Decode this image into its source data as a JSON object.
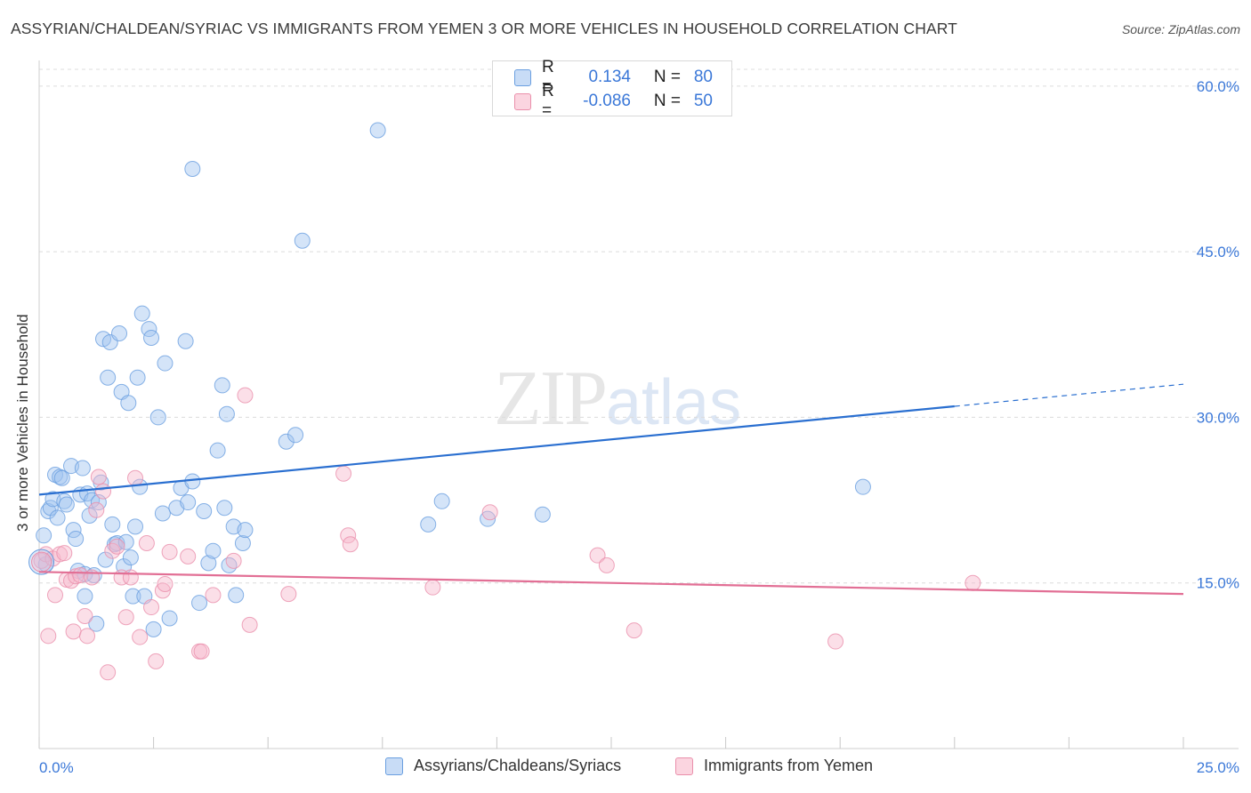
{
  "header": {
    "title": "ASSYRIAN/CHALDEAN/SYRIAC VS IMMIGRANTS FROM YEMEN 3 OR MORE VEHICLES IN HOUSEHOLD CORRELATION CHART",
    "source": "Source: ZipAtlas.com"
  },
  "watermark": {
    "zip": "ZIP",
    "atlas": "atlas"
  },
  "legend_top": {
    "rows": [
      {
        "r_label": "R =",
        "r_value": "0.134",
        "n_label": "N =",
        "n_value": "80",
        "color": "#9fc3f0"
      },
      {
        "r_label": "R =",
        "r_value": "-0.086",
        "n_label": "N =",
        "n_value": "50",
        "color": "#f7b8cc"
      }
    ]
  },
  "legend_bottom": {
    "items": [
      {
        "label": "Assyrians/Chaldeans/Syriacs",
        "color": "#9fc3f0"
      },
      {
        "label": "Immigrants from Yemen",
        "color": "#f7b8cc"
      }
    ]
  },
  "chart_data": {
    "type": "scatter",
    "title": "ASSYRIAN/CHALDEAN/SYRIAC VS IMMIGRANTS FROM YEMEN 3 OR MORE VEHICLES IN HOUSEHOLD CORRELATION CHART",
    "xlabel": "",
    "ylabel": "3 or more Vehicles in Household",
    "xlim": [
      0,
      25
    ],
    "ylim": [
      0,
      62
    ],
    "x_tick_labels": [
      "0.0%",
      "25.0%"
    ],
    "y_ticks": [
      15,
      30,
      45,
      60
    ],
    "y_tick_labels": [
      "15.0%",
      "30.0%",
      "45.0%",
      "60.0%"
    ],
    "grid": true,
    "legend_position": "top-center",
    "series": [
      {
        "name": "Assyrians/Chaldeans/Syriacs",
        "color": "#9fc3f0",
        "stroke": "#6a9fe0",
        "trend": {
          "x": [
            0,
            20
          ],
          "y": [
            23.0,
            31.0
          ],
          "dashed_extension_to_x": 25,
          "dashed_end_y": 33.0,
          "color": "#2a6fd0"
        },
        "points": [
          [
            0.1,
            19.3
          ],
          [
            0.2,
            21.5
          ],
          [
            0.25,
            21.8
          ],
          [
            0.3,
            22.6
          ],
          [
            0.35,
            24.8
          ],
          [
            0.4,
            20.9
          ],
          [
            0.45,
            24.6
          ],
          [
            0.5,
            24.5
          ],
          [
            0.55,
            22.4
          ],
          [
            0.6,
            22.1
          ],
          [
            0.7,
            25.6
          ],
          [
            0.75,
            19.8
          ],
          [
            0.8,
            19.0
          ],
          [
            0.85,
            16.1
          ],
          [
            0.9,
            23.0
          ],
          [
            0.95,
            25.4
          ],
          [
            1.0,
            15.8
          ],
          [
            1.05,
            23.1
          ],
          [
            1.1,
            21.1
          ],
          [
            1.15,
            22.5
          ],
          [
            1.2,
            15.7
          ],
          [
            1.25,
            11.3
          ],
          [
            1.3,
            22.3
          ],
          [
            1.35,
            24.1
          ],
          [
            1.4,
            37.1
          ],
          [
            1.45,
            17.1
          ],
          [
            1.5,
            33.6
          ],
          [
            1.55,
            36.8
          ],
          [
            1.6,
            20.3
          ],
          [
            1.65,
            18.5
          ],
          [
            1.7,
            18.6
          ],
          [
            1.75,
            37.6
          ],
          [
            1.8,
            32.3
          ],
          [
            1.85,
            16.5
          ],
          [
            1.9,
            18.7
          ],
          [
            1.95,
            31.3
          ],
          [
            2.0,
            17.3
          ],
          [
            2.05,
            13.8
          ],
          [
            2.1,
            20.1
          ],
          [
            2.15,
            33.6
          ],
          [
            2.2,
            23.7
          ],
          [
            2.25,
            39.4
          ],
          [
            2.3,
            13.8
          ],
          [
            2.4,
            38.0
          ],
          [
            2.45,
            37.2
          ],
          [
            2.5,
            10.8
          ],
          [
            2.6,
            30.0
          ],
          [
            2.7,
            21.3
          ],
          [
            2.75,
            34.9
          ],
          [
            2.85,
            11.8
          ],
          [
            3.0,
            21.8
          ],
          [
            3.1,
            23.6
          ],
          [
            3.25,
            22.3
          ],
          [
            3.35,
            24.2
          ],
          [
            3.5,
            13.2
          ],
          [
            3.6,
            21.5
          ],
          [
            3.7,
            16.8
          ],
          [
            3.8,
            17.9
          ],
          [
            3.9,
            27.0
          ],
          [
            4.0,
            32.9
          ],
          [
            4.05,
            21.8
          ],
          [
            4.15,
            16.6
          ],
          [
            4.25,
            20.1
          ],
          [
            4.3,
            13.9
          ],
          [
            4.45,
            18.6
          ],
          [
            4.5,
            19.8
          ],
          [
            5.4,
            27.8
          ],
          [
            5.6,
            28.4
          ],
          [
            7.4,
            56.0
          ],
          [
            8.5,
            20.3
          ],
          [
            8.8,
            22.4
          ],
          [
            9.8,
            20.8
          ],
          [
            11.0,
            21.2
          ],
          [
            18.0,
            23.7
          ],
          [
            3.35,
            52.5
          ],
          [
            5.75,
            46.0
          ],
          [
            1.0,
            13.8
          ],
          [
            0.15,
            16.7
          ],
          [
            3.2,
            36.9
          ],
          [
            4.1,
            30.3
          ]
        ]
      },
      {
        "name": "Immigrants from Yemen",
        "color": "#f7b8cc",
        "stroke": "#ea8fab",
        "trend": {
          "x": [
            0,
            25
          ],
          "y": [
            16.0,
            14.0
          ],
          "color": "#e26f95"
        },
        "points": [
          [
            0.05,
            17.0
          ],
          [
            0.15,
            17.6
          ],
          [
            0.2,
            10.2
          ],
          [
            0.3,
            17.2
          ],
          [
            0.35,
            13.9
          ],
          [
            0.45,
            17.6
          ],
          [
            0.55,
            17.7
          ],
          [
            0.6,
            15.3
          ],
          [
            0.7,
            15.2
          ],
          [
            0.75,
            10.6
          ],
          [
            0.8,
            15.6
          ],
          [
            0.9,
            15.7
          ],
          [
            1.0,
            12.0
          ],
          [
            1.05,
            10.2
          ],
          [
            1.15,
            15.5
          ],
          [
            1.25,
            21.6
          ],
          [
            1.3,
            24.6
          ],
          [
            1.4,
            23.3
          ],
          [
            1.5,
            6.9
          ],
          [
            1.6,
            17.9
          ],
          [
            1.7,
            18.3
          ],
          [
            1.8,
            15.5
          ],
          [
            1.9,
            11.9
          ],
          [
            2.0,
            15.5
          ],
          [
            2.1,
            24.5
          ],
          [
            2.2,
            10.1
          ],
          [
            2.35,
            18.6
          ],
          [
            2.45,
            12.8
          ],
          [
            2.55,
            7.9
          ],
          [
            2.7,
            14.3
          ],
          [
            2.75,
            14.9
          ],
          [
            2.85,
            17.8
          ],
          [
            3.25,
            17.4
          ],
          [
            3.5,
            8.8
          ],
          [
            3.55,
            8.8
          ],
          [
            3.8,
            13.9
          ],
          [
            4.25,
            17.0
          ],
          [
            4.5,
            32.0
          ],
          [
            4.6,
            11.2
          ],
          [
            5.45,
            14.0
          ],
          [
            6.65,
            24.9
          ],
          [
            6.75,
            19.3
          ],
          [
            6.8,
            18.5
          ],
          [
            8.6,
            14.6
          ],
          [
            9.85,
            21.4
          ],
          [
            12.2,
            17.5
          ],
          [
            12.4,
            16.6
          ],
          [
            13.0,
            10.7
          ],
          [
            17.4,
            9.7
          ],
          [
            20.4,
            15.0
          ]
        ]
      }
    ]
  }
}
